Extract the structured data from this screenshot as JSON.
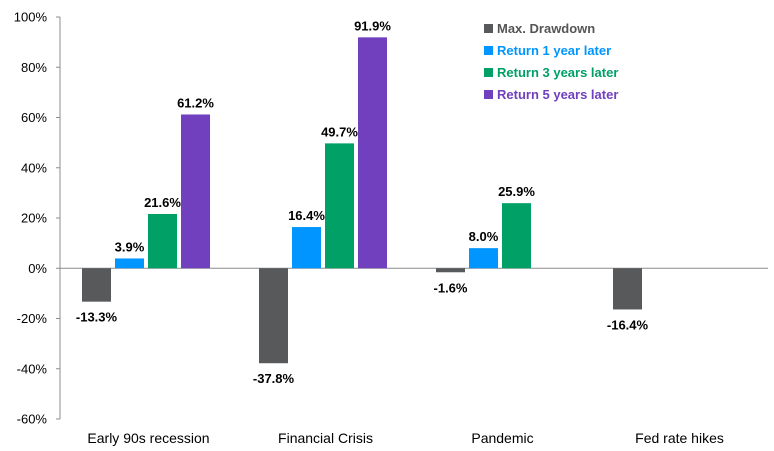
{
  "chart_data": {
    "type": "bar",
    "categories": [
      "Early 90s recession",
      "Financial Crisis",
      "Pandemic",
      "Fed rate hikes"
    ],
    "series": [
      {
        "name": "Max. Drawdown",
        "color": "#58595b",
        "values": [
          -13.3,
          -37.8,
          -1.6,
          -16.4
        ],
        "labels": [
          "-13.3%",
          "-37.8%",
          "-1.6%",
          "-16.4%"
        ]
      },
      {
        "name": "Return 1 year later",
        "color": "#0095ff",
        "values": [
          3.9,
          16.4,
          8.0,
          null
        ],
        "labels": [
          "3.9%",
          "16.4%",
          "8.0%",
          null
        ]
      },
      {
        "name": "Return 3 years later",
        "color": "#00a066",
        "values": [
          21.6,
          49.7,
          25.9,
          null
        ],
        "labels": [
          "21.6%",
          "49.7%",
          "25.9%",
          null
        ]
      },
      {
        "name": "Return 5 years later",
        "color": "#7040bf",
        "values": [
          61.2,
          91.9,
          null,
          null
        ],
        "labels": [
          "61.2%",
          "91.9%",
          null,
          null
        ]
      }
    ],
    "ylim": [
      -60,
      100
    ],
    "yticks": [
      -60,
      -40,
      -20,
      0,
      20,
      40,
      60,
      80,
      100
    ],
    "ytick_labels": [
      "-60%",
      "-40%",
      "-20%",
      "0%",
      "20%",
      "40%",
      "60%",
      "80%",
      "100%"
    ],
    "legend_placement": "top-right",
    "grid": false
  }
}
